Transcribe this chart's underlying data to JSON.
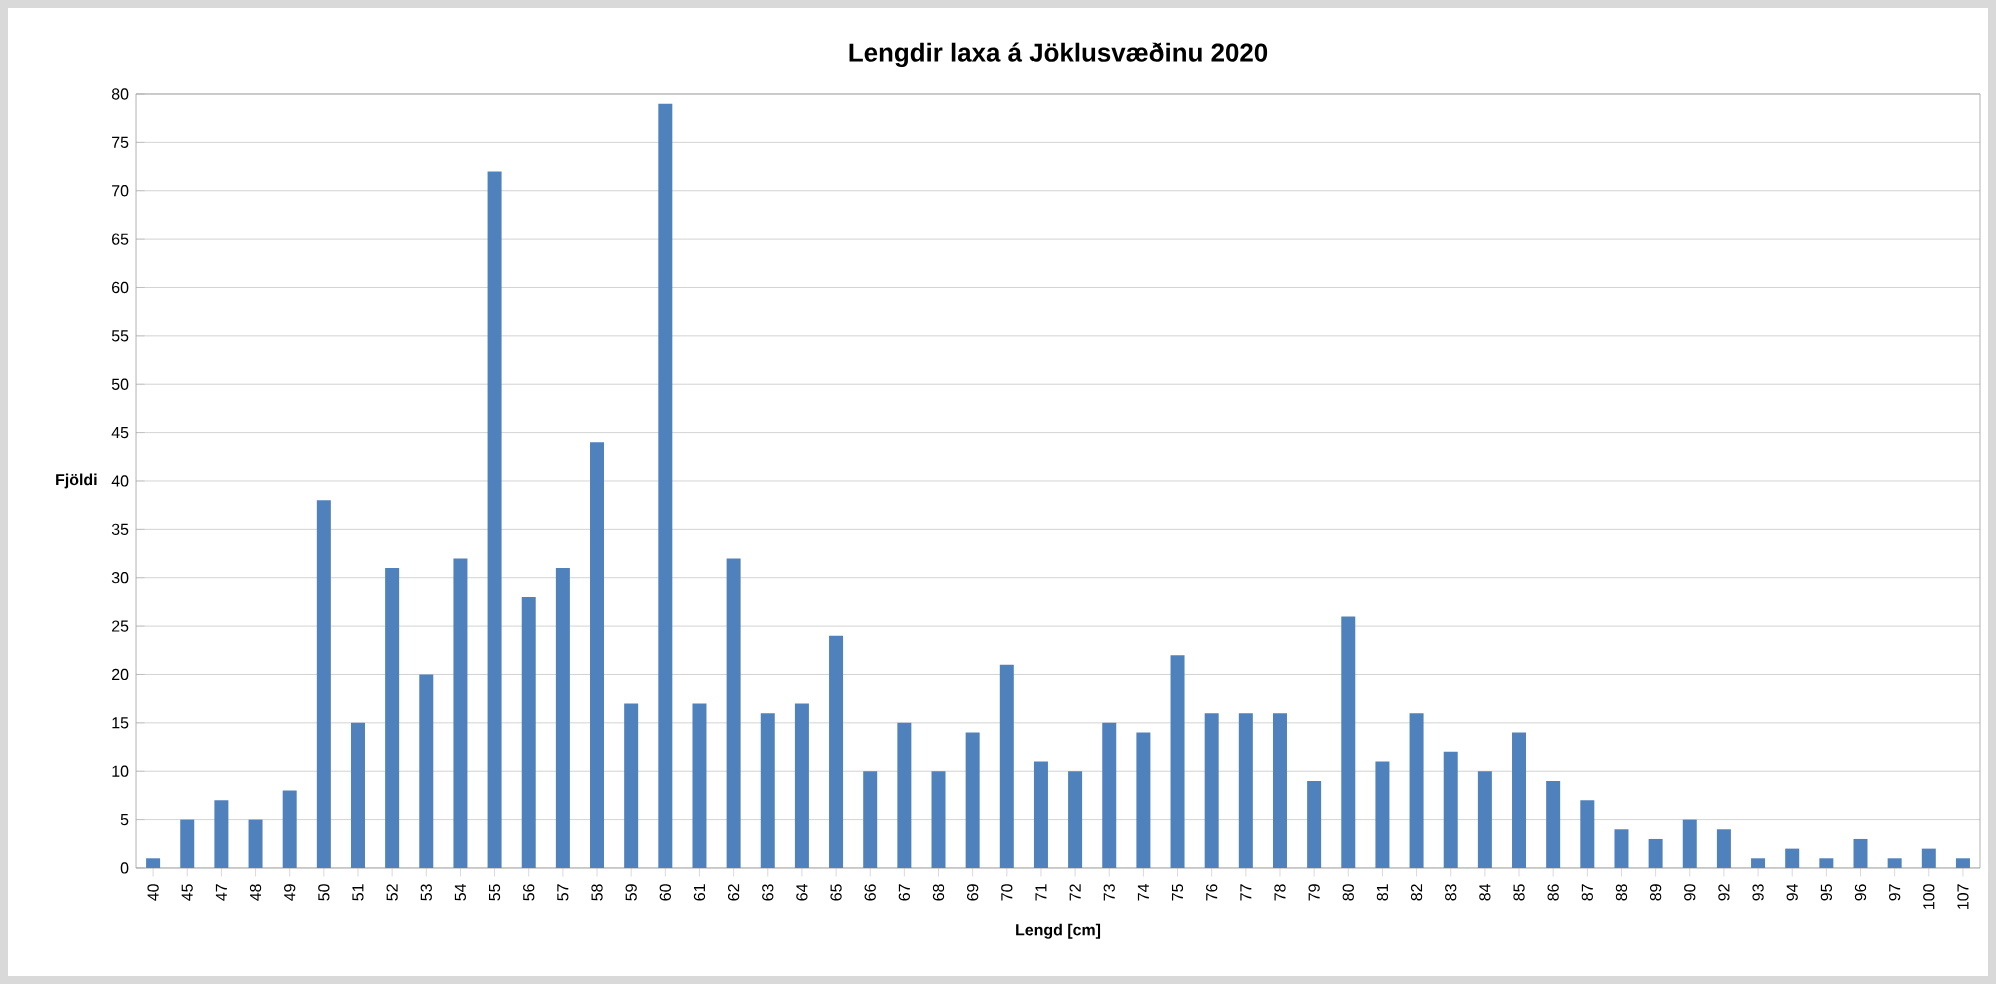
{
  "chart_data": {
    "type": "bar",
    "title": "Lengdir laxa á Jöklusvæðinu 2020",
    "xlabel": "Lengd [cm]",
    "ylabel": "Fjöldi",
    "categories": [
      "40",
      "45",
      "47",
      "48",
      "49",
      "50",
      "51",
      "52",
      "53",
      "54",
      "55",
      "56",
      "57",
      "58",
      "59",
      "60",
      "61",
      "62",
      "63",
      "64",
      "65",
      "66",
      "67",
      "68",
      "69",
      "70",
      "71",
      "72",
      "73",
      "74",
      "75",
      "76",
      "77",
      "78",
      "79",
      "80",
      "81",
      "82",
      "83",
      "84",
      "85",
      "86",
      "87",
      "88",
      "89",
      "90",
      "92",
      "93",
      "94",
      "95",
      "96",
      "97",
      "100",
      "107"
    ],
    "values": [
      1,
      5,
      7,
      5,
      8,
      38,
      15,
      31,
      20,
      32,
      72,
      28,
      31,
      44,
      17,
      79,
      17,
      32,
      16,
      17,
      24,
      10,
      15,
      10,
      14,
      21,
      11,
      10,
      15,
      14,
      22,
      16,
      16,
      16,
      9,
      26,
      11,
      16,
      12,
      10,
      14,
      9,
      7,
      4,
      3,
      5,
      4,
      1,
      2,
      1,
      3,
      1,
      2,
      1
    ],
    "color": "#4f81bd",
    "ylim": [
      0,
      80
    ],
    "yticks": [
      0,
      5,
      10,
      15,
      20,
      25,
      30,
      35,
      40,
      45,
      50,
      55,
      60,
      65,
      70,
      75,
      80
    ],
    "grid": "y"
  }
}
